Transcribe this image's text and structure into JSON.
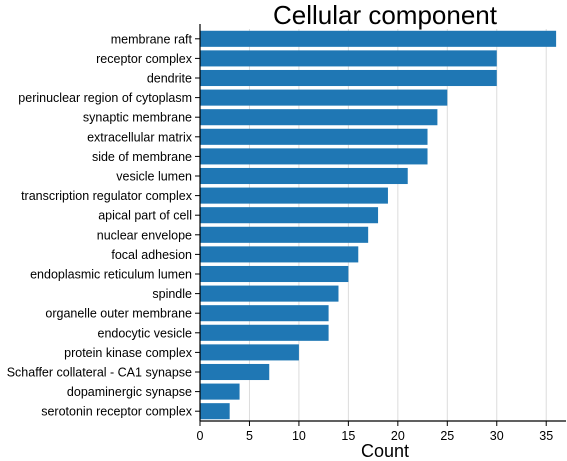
{
  "chart_data": {
    "type": "bar",
    "orientation": "horizontal",
    "title": "Cellular component",
    "xlabel": "Count",
    "ylabel": "",
    "xlim": [
      0,
      37
    ],
    "xticks": [
      0,
      5,
      10,
      15,
      20,
      25,
      30,
      35
    ],
    "grid": "vertical",
    "bar_color": "#1f77b4",
    "categories": [
      "membrane raft",
      "receptor complex",
      "dendrite",
      "perinuclear region of cytoplasm",
      "synaptic membrane",
      "extracellular matrix",
      "side of membrane",
      "vesicle lumen",
      "transcription regulator complex",
      "apical part of cell",
      "nuclear envelope",
      "focal adhesion",
      "endoplasmic reticulum lumen",
      "spindle",
      "organelle outer membrane",
      "endocytic vesicle",
      "protein kinase complex",
      "Schaffer collateral - CA1 synapse",
      "dopaminergic synapse",
      "serotonin receptor complex"
    ],
    "values": [
      36,
      30,
      30,
      25,
      24,
      23,
      23,
      21,
      19,
      18,
      17,
      16,
      15,
      14,
      13,
      13,
      10,
      7,
      4,
      3
    ]
  }
}
